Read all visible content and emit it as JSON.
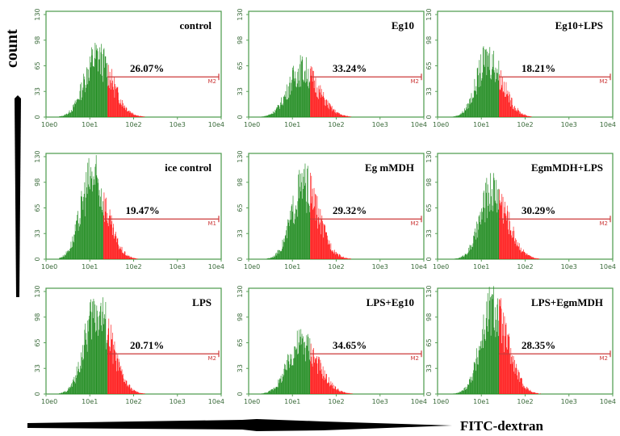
{
  "axis": {
    "y_label": "count",
    "x_label": "FITC-dextran",
    "x_ticks": [
      "10e0",
      "10e1",
      "10e2",
      "10e3",
      "10e4"
    ],
    "y_ticks": [
      "0",
      "33",
      "65",
      "98",
      "130"
    ]
  },
  "colors": {
    "green": "#1d8a1d",
    "red": "#ff1414",
    "gate": "#cc3a3a",
    "frame": "#4a9a4a",
    "text": "#000000"
  },
  "chart_data": [
    {
      "type": "histogram",
      "title": "control",
      "percent": "26.07%",
      "gate_label": "M2",
      "peak_log": 1.15,
      "peak_height": 88,
      "width": 0.28,
      "gate_start_log": 1.4,
      "xlim": [
        "10e0",
        "10e4"
      ],
      "ylim": [
        0,
        130
      ]
    },
    {
      "type": "histogram",
      "title": "Eg10",
      "percent": "33.24%",
      "gate_label": "M2",
      "peak_log": 1.2,
      "peak_height": 70,
      "width": 0.3,
      "gate_start_log": 1.4,
      "xlim": [
        "10e0",
        "10e4"
      ],
      "ylim": [
        0,
        130
      ]
    },
    {
      "type": "histogram",
      "title": "Eg10+LPS",
      "percent": "18.21%",
      "gate_label": "M2",
      "peak_log": 1.15,
      "peak_height": 86,
      "width": 0.26,
      "gate_start_log": 1.4,
      "xlim": [
        "10e0",
        "10e4"
      ],
      "ylim": [
        0,
        130
      ]
    },
    {
      "type": "histogram",
      "title": "ice control",
      "percent": "19.47%",
      "gate_label": "M1",
      "peak_log": 1.05,
      "peak_height": 120,
      "width": 0.26,
      "gate_start_log": 1.3,
      "xlim": [
        "10e0",
        "10e4"
      ],
      "ylim": [
        0,
        130
      ]
    },
    {
      "type": "histogram",
      "title": "Eg mMDH",
      "percent": "29.32%",
      "gate_label": "M2",
      "peak_log": 1.25,
      "peak_height": 108,
      "width": 0.27,
      "gate_start_log": 1.4,
      "xlim": [
        "10e0",
        "10e4"
      ],
      "ylim": [
        0,
        130
      ]
    },
    {
      "type": "histogram",
      "title": "EgmMDH+LPS",
      "percent": "30.29%",
      "gate_label": "M2",
      "peak_log": 1.25,
      "peak_height": 102,
      "width": 0.27,
      "gate_start_log": 1.4,
      "xlim": [
        "10e0",
        "10e4"
      ],
      "ylim": [
        0,
        130
      ]
    },
    {
      "type": "histogram",
      "title": "LPS",
      "percent": "20.71%",
      "gate_label": "M2",
      "peak_log": 1.15,
      "peak_height": 125,
      "width": 0.27,
      "gate_start_log": 1.4,
      "xlim": [
        "10e0",
        "10e4"
      ],
      "ylim": [
        0,
        130
      ]
    },
    {
      "type": "histogram",
      "title": "LPS+Eg10",
      "percent": "34.65%",
      "gate_label": "M2",
      "peak_log": 1.2,
      "peak_height": 76,
      "width": 0.3,
      "gate_start_log": 1.4,
      "xlim": [
        "10e0",
        "10e4"
      ],
      "ylim": [
        0,
        130
      ]
    },
    {
      "type": "histogram",
      "title": "LPS+EgmMDH",
      "percent": "28.35%",
      "gate_label": "M2",
      "peak_log": 1.25,
      "peak_height": 125,
      "width": 0.27,
      "gate_start_log": 1.4,
      "xlim": [
        "10e0",
        "10e4"
      ],
      "ylim": [
        0,
        130
      ]
    }
  ]
}
